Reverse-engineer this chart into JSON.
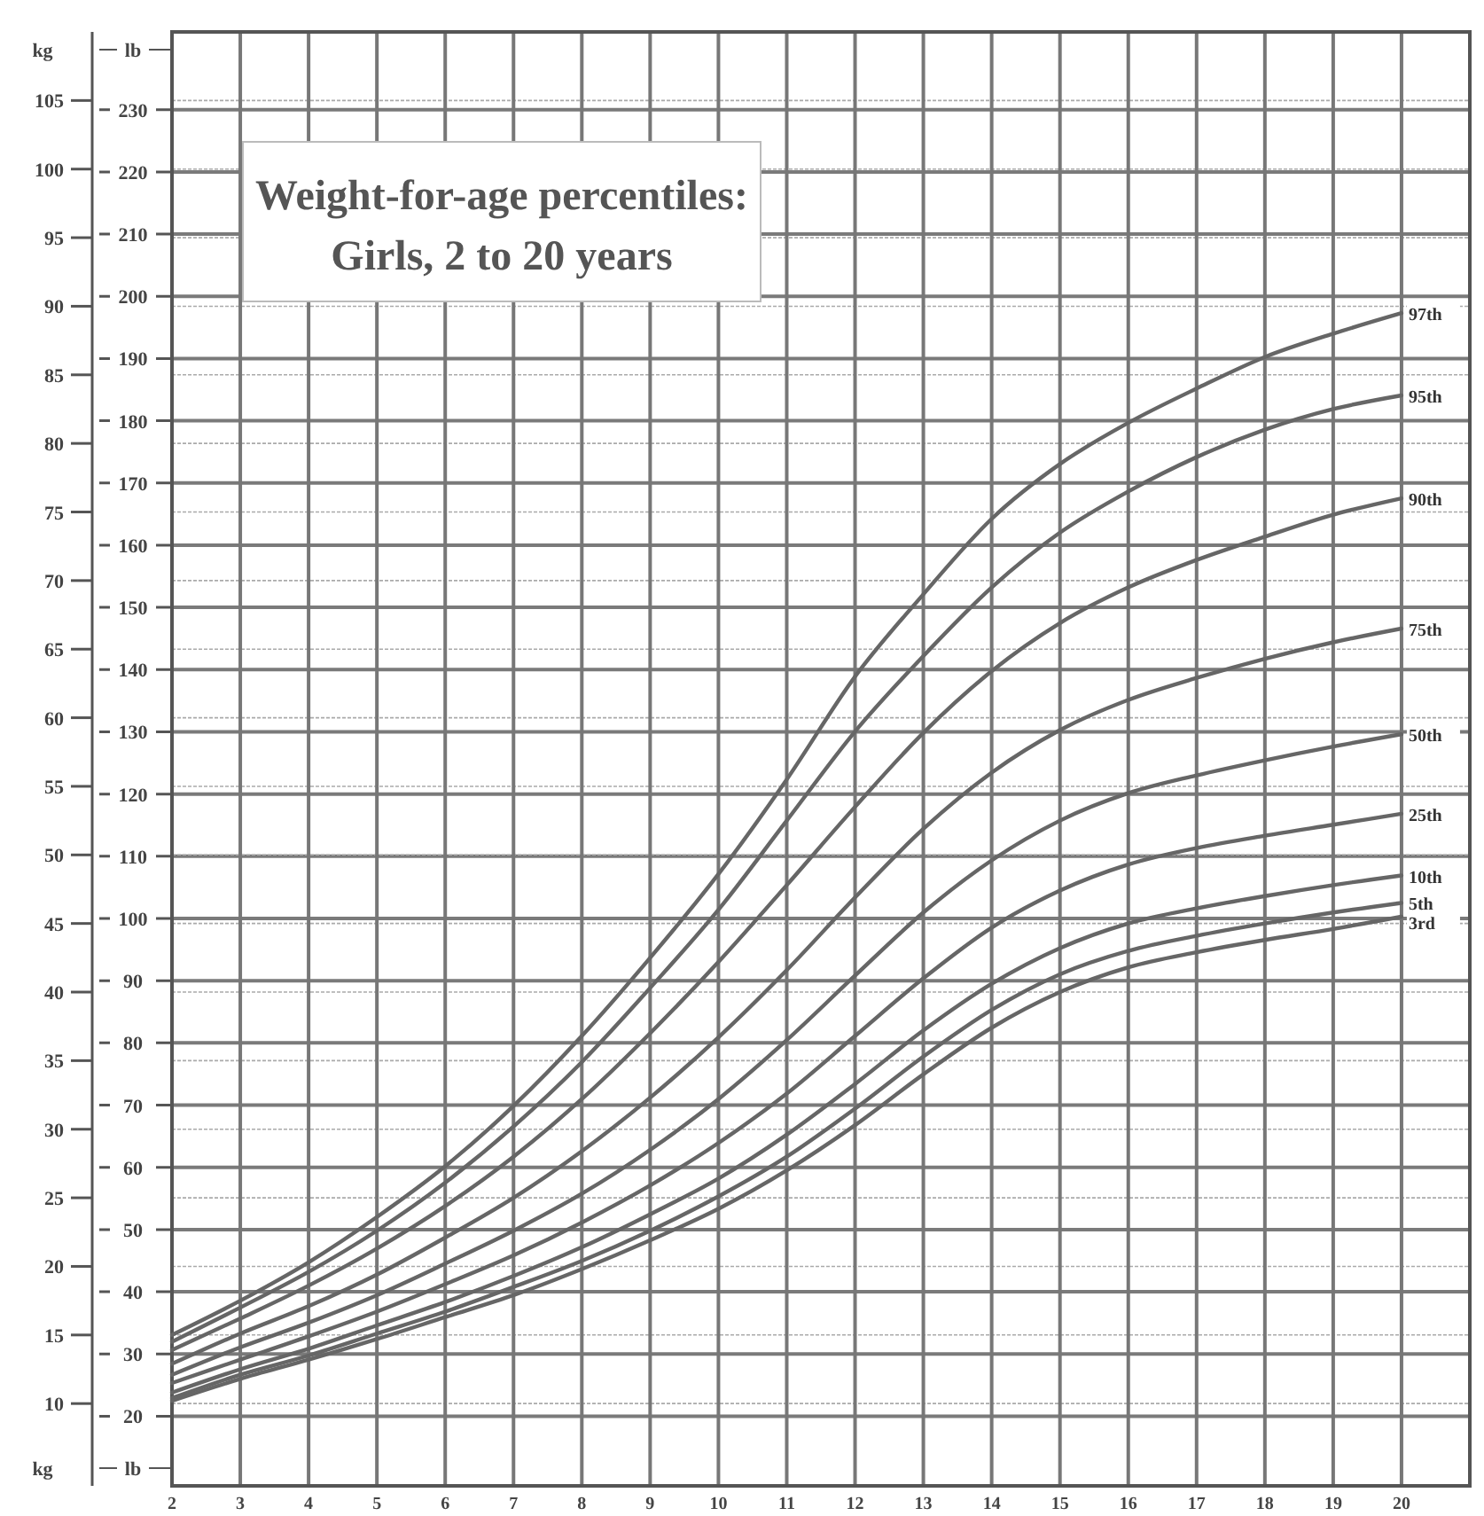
{
  "chart_data": {
    "type": "line",
    "title": "Weight-for-age percentiles:",
    "subtitle": "Girls, 2 to 20 years",
    "ylabel": "kg",
    "y2label": "lb",
    "x": [
      2,
      3,
      4,
      5,
      6,
      7,
      8,
      9,
      10,
      11,
      12,
      13,
      14,
      15,
      16,
      17,
      18,
      19,
      20
    ],
    "xlim": [
      2,
      21
    ],
    "xticks": [
      2,
      3,
      4,
      5,
      6,
      7,
      8,
      9,
      10,
      11,
      12,
      13,
      14,
      15,
      16,
      17,
      18,
      19,
      20
    ],
    "ylim": [
      4,
      110
    ],
    "yticks": [
      10,
      15,
      20,
      25,
      30,
      35,
      40,
      45,
      50,
      55,
      60,
      65,
      70,
      75,
      80,
      85,
      90,
      95,
      100,
      105
    ],
    "y2lim": [
      8.8,
      242.5
    ],
    "y2ticks": [
      20,
      30,
      40,
      50,
      60,
      70,
      80,
      90,
      100,
      110,
      120,
      130,
      140,
      150,
      160,
      170,
      180,
      190,
      200,
      210,
      220,
      230
    ],
    "grid": true,
    "legend": false,
    "marker": "none",
    "line_style": "solid",
    "series": [
      {
        "name": "97th",
        "color": "#666666",
        "values": [
          15.0,
          17.5,
          20.3,
          23.6,
          27.3,
          31.7,
          36.8,
          42.5,
          48.6,
          55.5,
          63.0,
          69.0,
          74.5,
          78.5,
          81.5,
          84.0,
          86.3,
          88.0,
          89.5
        ]
      },
      {
        "name": "95th",
        "color": "#666666",
        "values": [
          14.5,
          17.0,
          19.6,
          22.6,
          26.1,
          30.2,
          34.9,
          40.3,
          46.0,
          52.5,
          59.0,
          64.5,
          69.5,
          73.5,
          76.5,
          79.0,
          81.0,
          82.5,
          83.5
        ]
      },
      {
        "name": "90th",
        "color": "#666666",
        "values": [
          13.9,
          16.2,
          18.6,
          21.3,
          24.4,
          28.0,
          32.2,
          37.0,
          42.2,
          47.8,
          53.5,
          58.9,
          63.4,
          66.9,
          69.5,
          71.5,
          73.2,
          74.8,
          76.0
        ]
      },
      {
        "name": "75th",
        "color": "#666666",
        "values": [
          12.9,
          15.1,
          17.1,
          19.4,
          22.1,
          25.0,
          28.4,
          32.3,
          36.7,
          41.6,
          46.9,
          51.9,
          56.0,
          59.1,
          61.3,
          62.9,
          64.3,
          65.5,
          66.5
        ]
      },
      {
        "name": "50th",
        "color": "#666666",
        "values": [
          12.1,
          14.1,
          15.9,
          17.9,
          20.2,
          22.6,
          25.3,
          28.5,
          32.2,
          36.5,
          41.2,
          45.8,
          49.6,
          52.5,
          54.5,
          55.8,
          56.9,
          57.9,
          58.8
        ]
      },
      {
        "name": "25th",
        "color": "#666666",
        "values": [
          11.5,
          13.2,
          14.9,
          16.7,
          18.7,
          20.8,
          23.2,
          25.9,
          29.0,
          32.6,
          36.8,
          41.0,
          44.7,
          47.4,
          49.3,
          50.5,
          51.4,
          52.2,
          53.0
        ]
      },
      {
        "name": "10th",
        "color": "#666666",
        "values": [
          10.8,
          12.5,
          14.0,
          15.7,
          17.4,
          19.3,
          21.4,
          23.8,
          26.4,
          29.6,
          33.3,
          37.2,
          40.6,
          43.2,
          45.0,
          46.1,
          47.0,
          47.8,
          48.5
        ]
      },
      {
        "name": "5th",
        "color": "#666666",
        "values": [
          10.4,
          12.1,
          13.5,
          15.1,
          16.7,
          18.5,
          20.4,
          22.6,
          25.1,
          28.0,
          31.5,
          35.3,
          38.7,
          41.3,
          43.0,
          44.1,
          45.0,
          45.8,
          46.5
        ]
      },
      {
        "name": "3rd",
        "color": "#666666",
        "values": [
          10.2,
          11.8,
          13.2,
          14.7,
          16.3,
          17.9,
          19.8,
          21.9,
          24.2,
          27.0,
          30.3,
          34.0,
          37.4,
          40.0,
          41.8,
          42.9,
          43.8,
          44.6,
          45.5
        ]
      }
    ]
  }
}
